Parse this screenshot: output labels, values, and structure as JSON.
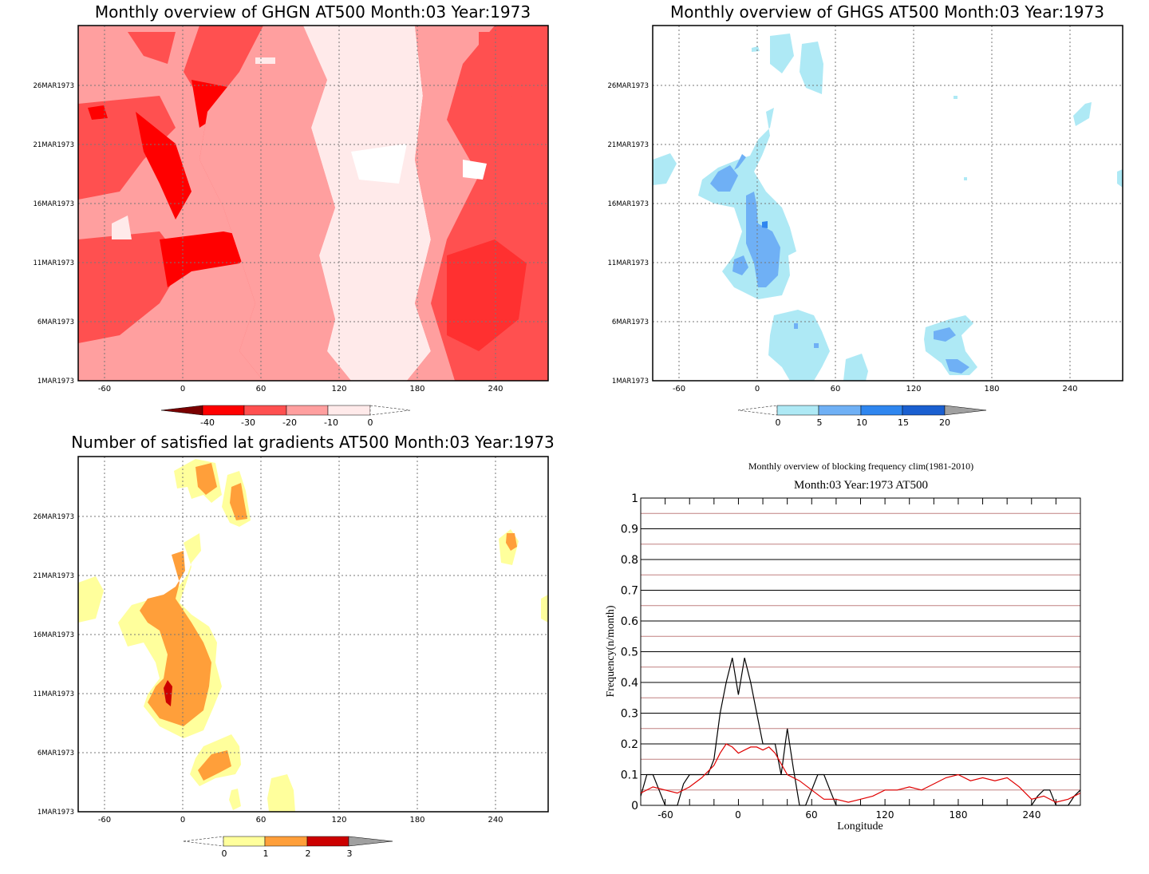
{
  "panels": {
    "ghgn": {
      "title": "Monthly overview of GHGN AT500 Month:03 Year:1973",
      "x_ticks": [
        "-60",
        "0",
        "60",
        "120",
        "180",
        "240"
      ],
      "y_ticks": [
        "1MAR1973",
        "6MAR1973",
        "11MAR1973",
        "16MAR1973",
        "21MAR1973",
        "26MAR1973"
      ],
      "colorbar": {
        "labels": [
          "-40",
          "-30",
          "-20",
          "-10",
          "0"
        ],
        "colors": [
          "#7a0000",
          "#ff0000",
          "#ff5050",
          "#ff9f9f",
          "#ffeaea"
        ]
      }
    },
    "ghgs": {
      "title": "Monthly overview of GHGS AT500 Month:03 Year:1973",
      "x_ticks": [
        "-60",
        "0",
        "60",
        "120",
        "180",
        "240"
      ],
      "y_ticks": [
        "1MAR1973",
        "6MAR1973",
        "11MAR1973",
        "16MAR1973",
        "21MAR1973",
        "26MAR1973"
      ],
      "colorbar": {
        "labels": [
          "0",
          "5",
          "10",
          "15",
          "20"
        ],
        "colors": [
          "#aee9f5",
          "#6fb0f5",
          "#2f86ef",
          "#1a5fd0",
          "#a0a0a0"
        ]
      }
    },
    "grad": {
      "title": "Number of satisfied lat gradients AT500 Month:03 Year:1973",
      "x_ticks": [
        "-60",
        "0",
        "60",
        "120",
        "180",
        "240"
      ],
      "y_ticks": [
        "1MAR1973",
        "6MAR1973",
        "11MAR1973",
        "16MAR1973",
        "21MAR1973",
        "26MAR1973"
      ],
      "colorbar": {
        "labels": [
          "0",
          "1",
          "2",
          "3"
        ],
        "colors": [
          "#ffff9c",
          "#ff9f3a",
          "#cc0000",
          "#a0a0a0"
        ]
      }
    },
    "freq": {
      "title1": "Monthly overview of blocking frequency clim(1981-2010)",
      "title2": "Month:03 Year:1973  AT500",
      "ylabel": "Frequency(n/month)",
      "xlabel": "Longitude",
      "x_ticks": [
        "-60",
        "0",
        "60",
        "120",
        "180",
        "240"
      ],
      "y_ticks": [
        "0",
        "0.1",
        "0.2",
        "0.3",
        "0.4",
        "0.5",
        "0.6",
        "0.7",
        "0.8",
        "0.9",
        "1"
      ]
    }
  },
  "chart_data": [
    {
      "type": "heatmap",
      "title": "Monthly overview of GHGN AT500 Month:03 Year:1973",
      "x_range": [
        -80,
        280
      ],
      "y_range": [
        "1MAR1973",
        "31MAR1973"
      ],
      "levels": [
        -40,
        -30,
        -20,
        -10,
        0
      ],
      "colors": [
        "#7a0000",
        "#ff0000",
        "#ff5050",
        "#ff9f9f",
        "#ffeaea"
      ]
    },
    {
      "type": "heatmap",
      "title": "Monthly overview of GHGS AT500 Month:03 Year:1973",
      "x_range": [
        -80,
        280
      ],
      "y_range": [
        "1MAR1973",
        "31MAR1973"
      ],
      "levels": [
        0,
        5,
        10,
        15,
        20
      ],
      "colors": [
        "#aee9f5",
        "#6fb0f5",
        "#2f86ef",
        "#1a5fd0",
        "#a0a0a0"
      ]
    },
    {
      "type": "heatmap",
      "title": "Number of satisfied lat gradients AT500 Month:03 Year:1973",
      "x_range": [
        -80,
        280
      ],
      "y_range": [
        "1MAR1973",
        "31MAR1973"
      ],
      "levels": [
        0,
        1,
        2,
        3
      ],
      "colors": [
        "#ffff9c",
        "#ff9f3a",
        "#cc0000",
        "#a0a0a0"
      ]
    },
    {
      "type": "line",
      "title": "Monthly overview of blocking frequency clim(1981-2010)",
      "subtitle": "Month:03 Year:1973  AT500",
      "xlabel": "Longitude",
      "ylabel": "Frequency(n/month)",
      "xlim": [
        -80,
        280
      ],
      "ylim": [
        0,
        1
      ],
      "grid": true,
      "series": [
        {
          "color": "#000000",
          "x": [
            -80,
            -75,
            -70,
            -65,
            -60,
            -55,
            -50,
            -45,
            -40,
            -35,
            -30,
            -25,
            -20,
            -15,
            -10,
            -5,
            0,
            5,
            10,
            15,
            20,
            25,
            30,
            35,
            40,
            45,
            50,
            55,
            60,
            65,
            70,
            75,
            80,
            85,
            100,
            150,
            200,
            240,
            245,
            250,
            255,
            260,
            265,
            270,
            275,
            280
          ],
          "y": [
            0.03,
            0.1,
            0.1,
            0.05,
            0.0,
            0.0,
            0.0,
            0.07,
            0.1,
            0.1,
            0.1,
            0.1,
            0.15,
            0.3,
            0.4,
            0.48,
            0.36,
            0.48,
            0.4,
            0.3,
            0.2,
            0.2,
            0.2,
            0.1,
            0.25,
            0.12,
            0.0,
            0.0,
            0.05,
            0.1,
            0.1,
            0.05,
            0.0,
            0.0,
            0.0,
            0.0,
            0.0,
            0.0,
            0.03,
            0.05,
            0.05,
            0.0,
            0.0,
            0.0,
            0.03,
            0.05
          ]
        },
        {
          "color": "#e00000",
          "x": [
            -80,
            -70,
            -60,
            -50,
            -40,
            -30,
            -20,
            -15,
            -10,
            -5,
            0,
            5,
            10,
            15,
            20,
            25,
            30,
            40,
            50,
            60,
            70,
            80,
            90,
            100,
            110,
            120,
            130,
            140,
            150,
            160,
            170,
            180,
            190,
            200,
            210,
            220,
            230,
            240,
            250,
            260,
            270,
            280
          ],
          "y": [
            0.04,
            0.06,
            0.05,
            0.04,
            0.06,
            0.09,
            0.13,
            0.17,
            0.2,
            0.19,
            0.17,
            0.18,
            0.19,
            0.19,
            0.18,
            0.19,
            0.17,
            0.1,
            0.08,
            0.05,
            0.02,
            0.02,
            0.01,
            0.02,
            0.03,
            0.05,
            0.05,
            0.06,
            0.05,
            0.07,
            0.09,
            0.1,
            0.08,
            0.09,
            0.08,
            0.09,
            0.06,
            0.02,
            0.03,
            0.01,
            0.02,
            0.04
          ]
        }
      ]
    }
  ]
}
